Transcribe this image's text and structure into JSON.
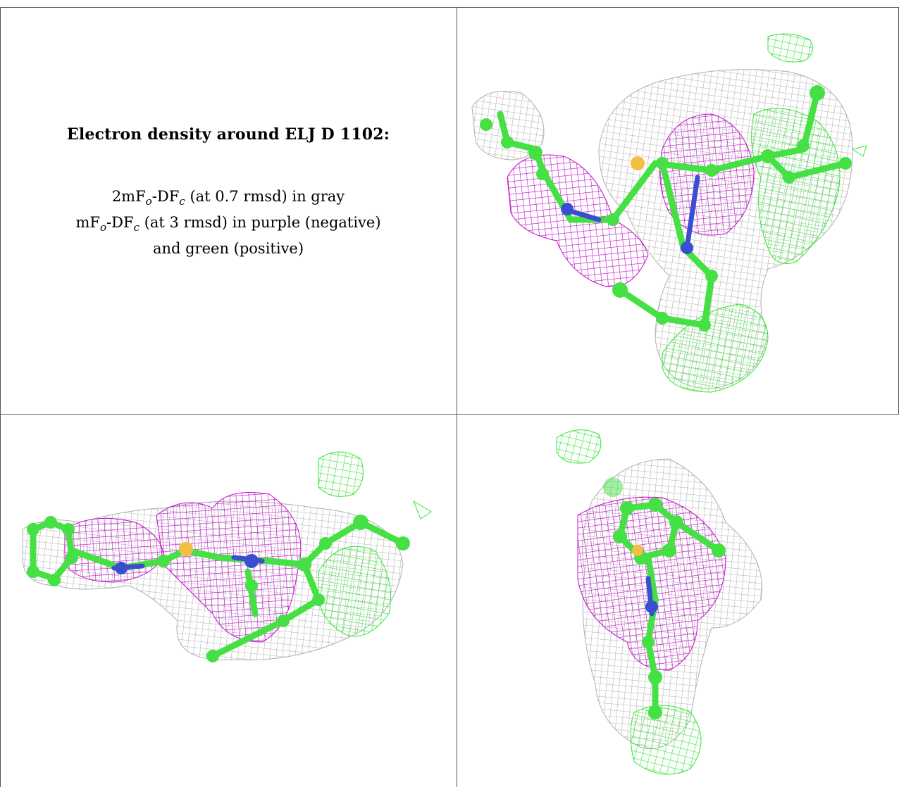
{
  "caption": {
    "title": "Electron density around ELJ D 1102:",
    "line1": {
      "pre": "2mF",
      "sub1": "o",
      "mid": "-DF",
      "sub2": "c",
      "post": " (at 0.7 rmsd) in gray"
    },
    "line2": {
      "pre": "mF",
      "sub1": "o",
      "mid": "-DF",
      "sub2": "c",
      "post": " (at 3 rmsd) in purple (negative)"
    },
    "line3": "and green (positive)"
  },
  "colors": {
    "gray_mesh": "#b0b0b0",
    "purple_mesh": "#c010c8",
    "green_mesh": "#33e633",
    "carbon": "#44e044",
    "nitrogen": "#3a4fd0",
    "sulfur": "#f2c040",
    "border": "#555555"
  },
  "panels": [
    {
      "id": "top-right",
      "view": "molecule-view-1"
    },
    {
      "id": "bottom-left",
      "view": "molecule-view-2"
    },
    {
      "id": "bottom-right",
      "view": "molecule-view-3"
    }
  ]
}
